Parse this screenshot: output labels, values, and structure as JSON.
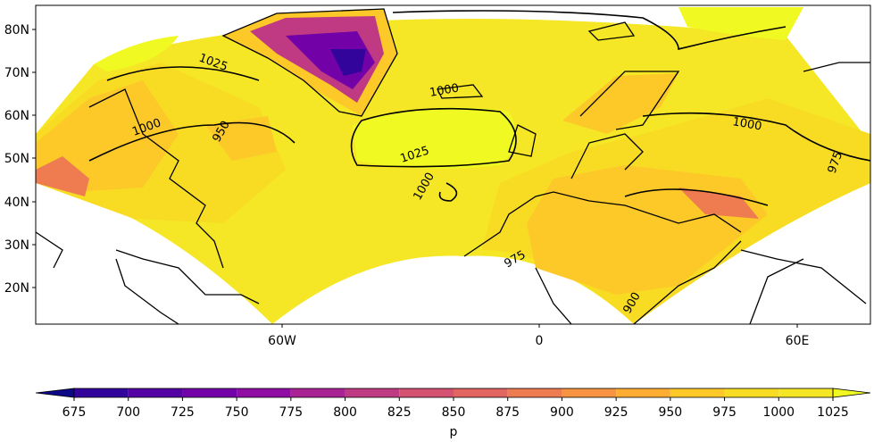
{
  "map": {
    "lat_labels": [
      "80N",
      "70N",
      "60N",
      "50N",
      "40N",
      "30N",
      "20N"
    ],
    "lon_labels": [
      "60W",
      "0",
      "60E"
    ],
    "contour_labels": [
      "1025",
      "1000",
      "1000",
      "975",
      "1000",
      "1025",
      "950",
      "1000",
      "975",
      "900"
    ]
  },
  "colorbar": {
    "label": "p",
    "ticks": [
      675,
      700,
      725,
      750,
      775,
      800,
      825,
      850,
      875,
      900,
      925,
      950,
      975,
      1000,
      1025
    ],
    "colors": [
      "#0d0887",
      "#33049b",
      "#5302a3",
      "#7201a8",
      "#8f0da4",
      "#a92395",
      "#c03a83",
      "#d35171",
      "#e26561",
      "#ef7b51",
      "#f89441",
      "#fdae32",
      "#fcc928",
      "#f8dc24",
      "#f5e726",
      "#f0f921"
    ],
    "extend": "both"
  }
}
